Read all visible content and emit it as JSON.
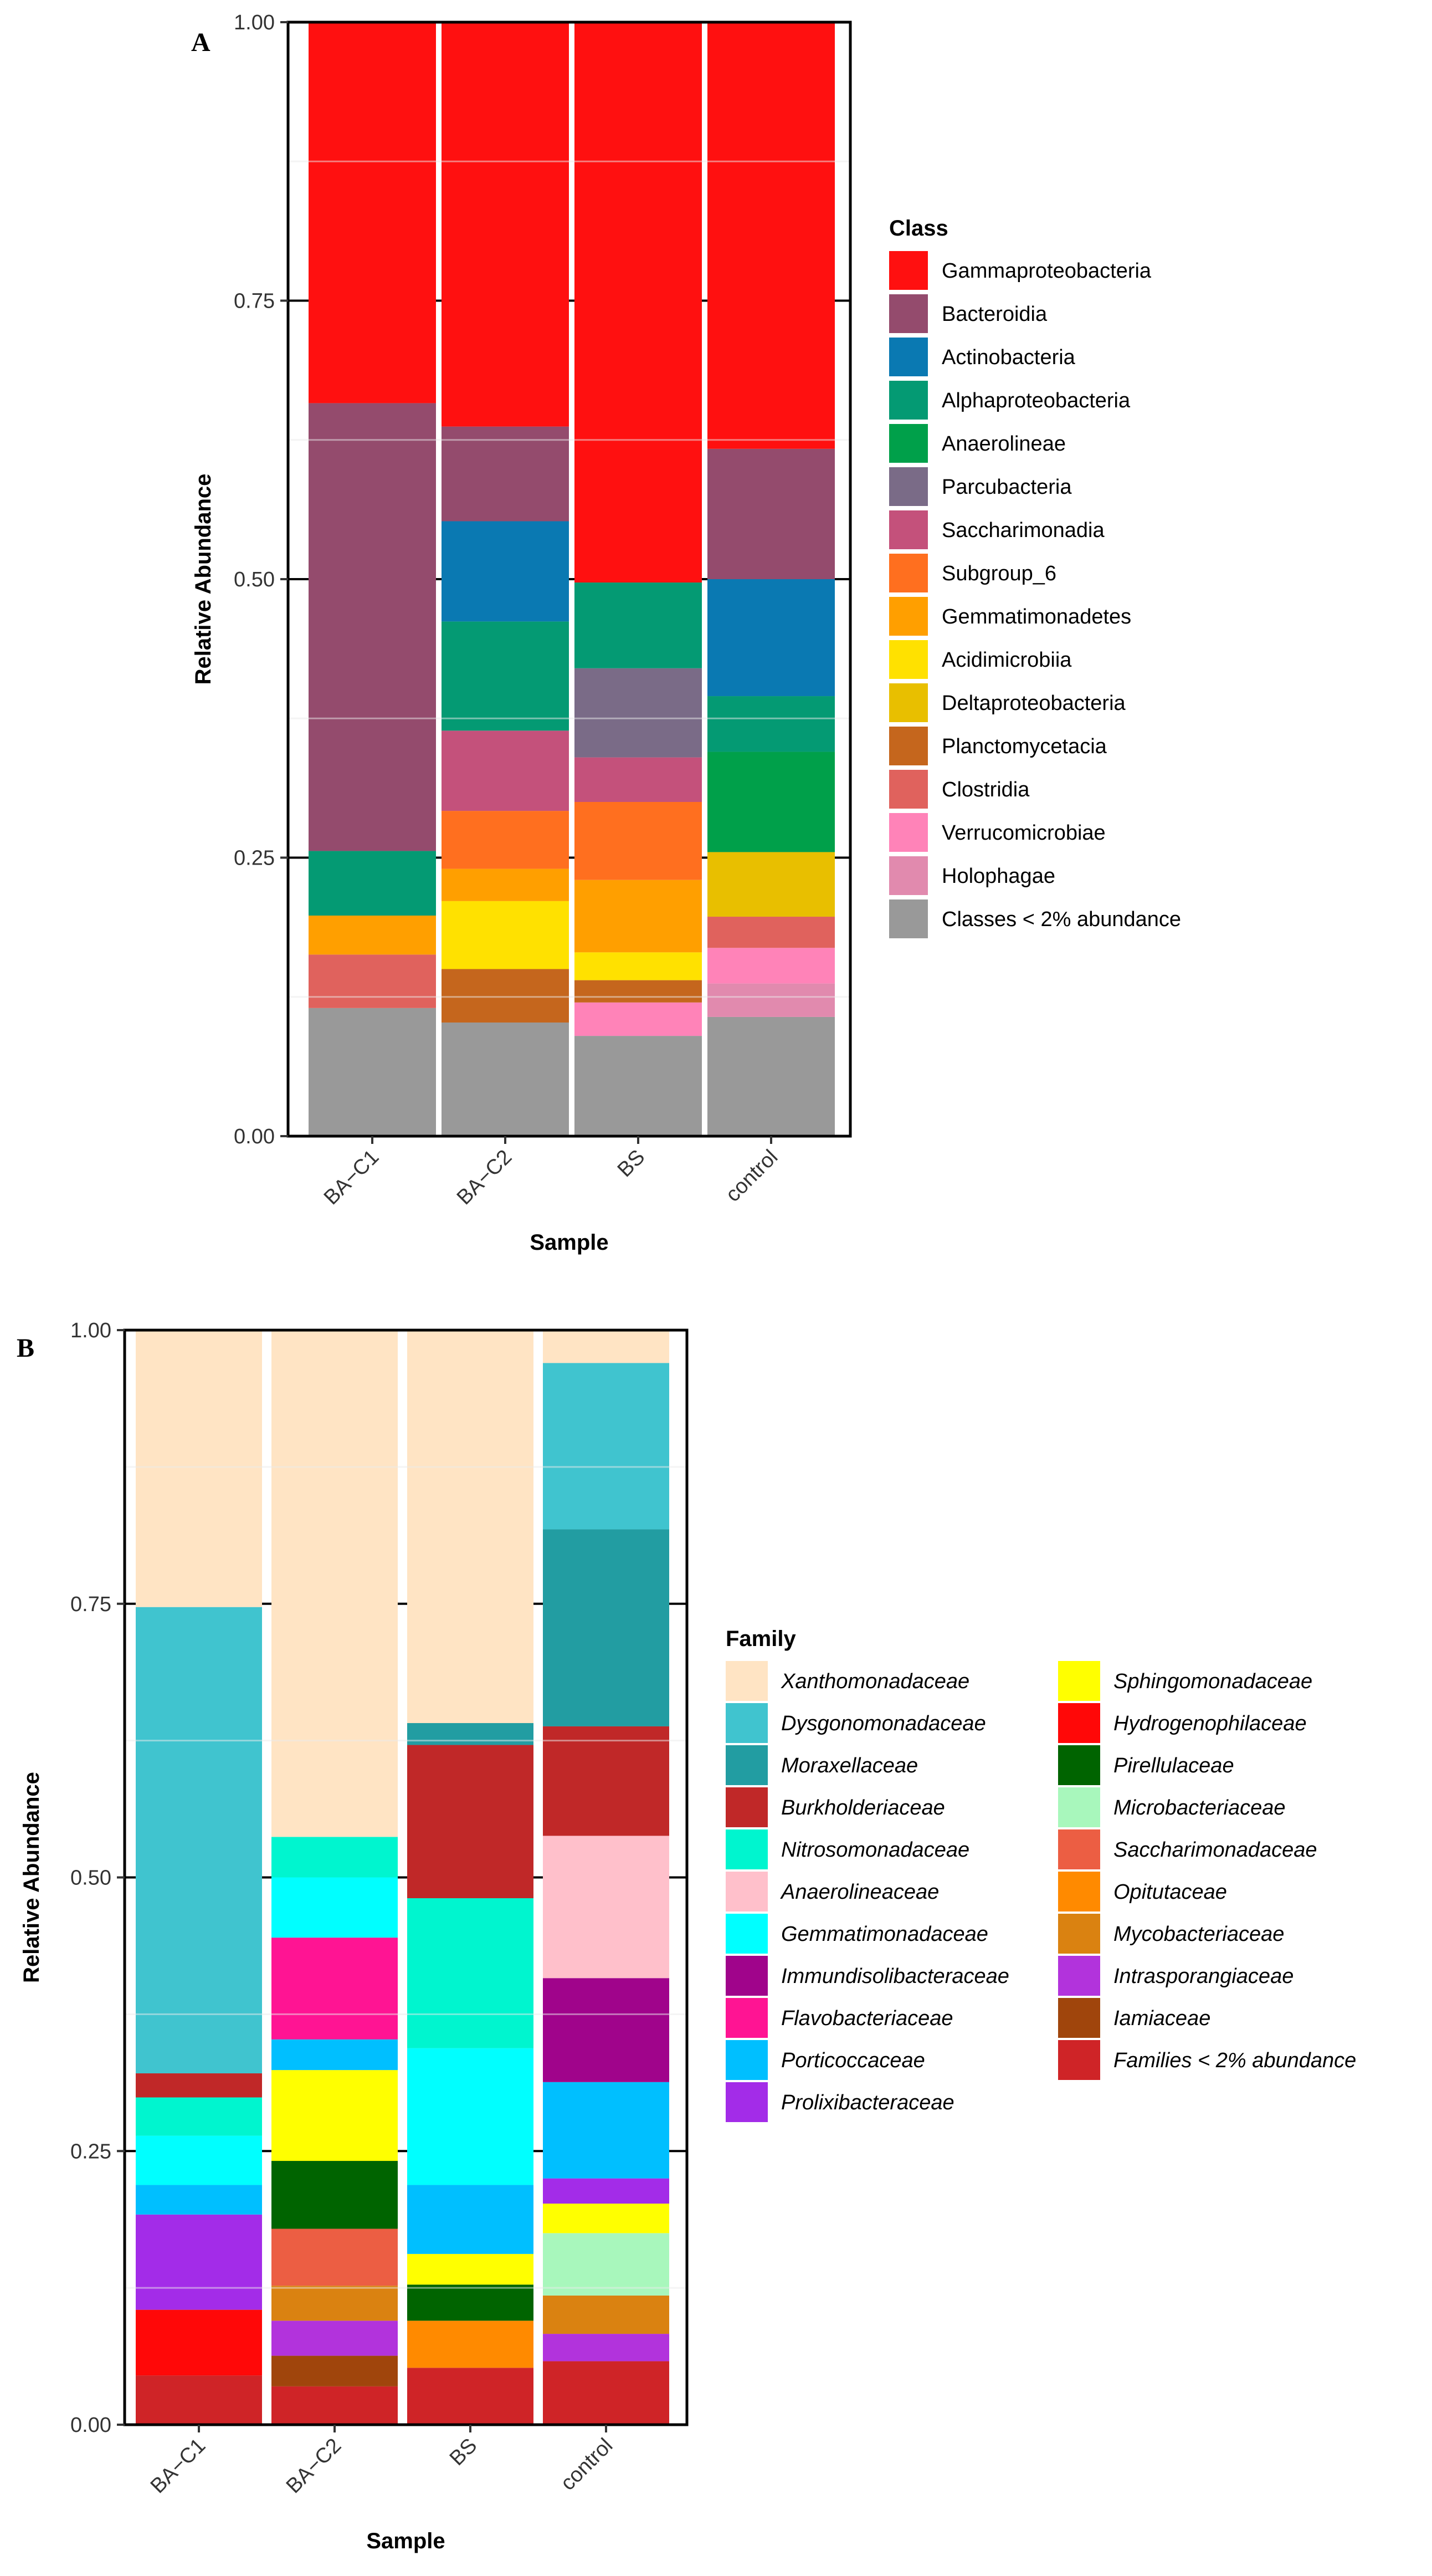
{
  "chart_data": [
    {
      "panel": "A",
      "type": "bar",
      "stacked": true,
      "xlabel": "Sample",
      "ylabel": "Relative Abundance",
      "ylim": [
        0,
        1
      ],
      "yticks": [
        "0.00",
        "0.25",
        "0.50",
        "0.75",
        "1.00"
      ],
      "categories": [
        "BA−C1",
        "BA−C2",
        "BS",
        "control"
      ],
      "legend_title": "Class",
      "legend_position": "right",
      "series": [
        {
          "name": "Classes < 2% abundance",
          "color": "#999999",
          "values": [
            0.115,
            0.102,
            0.09,
            0.107
          ]
        },
        {
          "name": "Holophagae",
          "color": "#E18AAE",
          "values": [
            0,
            0,
            0,
            0.03
          ]
        },
        {
          "name": "Verrucomicrobiae",
          "color": "#FF83B8",
          "values": [
            0,
            0,
            0.03,
            0.032
          ]
        },
        {
          "name": "Clostridia",
          "color": "#E0625D",
          "values": [
            0.048,
            0,
            0,
            0.028
          ]
        },
        {
          "name": "Planctomycetacia",
          "color": "#C5661D",
          "values": [
            0,
            0.048,
            0.02,
            0
          ]
        },
        {
          "name": "Deltaproteobacteria",
          "color": "#E8BF00",
          "values": [
            0,
            0,
            0,
            0.058
          ]
        },
        {
          "name": "Acidimicrobiia",
          "color": "#FFE100",
          "values": [
            0,
            0.061,
            0.025,
            0
          ]
        },
        {
          "name": "Gemmatimonadetes",
          "color": "#FF9F00",
          "values": [
            0.035,
            0.029,
            0.065,
            0
          ]
        },
        {
          "name": "Subgroup_6",
          "color": "#FF6F1F",
          "values": [
            0,
            0.052,
            0.07,
            0
          ]
        },
        {
          "name": "Saccharimonadia",
          "color": "#C4517B",
          "values": [
            0,
            0.072,
            0.04,
            0
          ]
        },
        {
          "name": "Parcubacteria",
          "color": "#7A6B87",
          "values": [
            0,
            0,
            0.08,
            0
          ]
        },
        {
          "name": "Anaerolineae",
          "color": "#00A04A",
          "values": [
            0,
            0,
            0,
            0.09
          ]
        },
        {
          "name": "Alphaproteobacteria",
          "color": "#049A73",
          "values": [
            0.058,
            0.098,
            0.077,
            0.05
          ]
        },
        {
          "name": "Actinobacteria",
          "color": "#0A79B2",
          "values": [
            0,
            0.09,
            0,
            0.105
          ]
        },
        {
          "name": "Bacteroidia",
          "color": "#944B6D",
          "values": [
            0.402,
            0.085,
            0,
            0.117
          ]
        },
        {
          "name": "Gammaproteobacteria",
          "color": "#FF1010",
          "values": [
            0.342,
            0.363,
            0.503,
            0.383
          ]
        }
      ]
    },
    {
      "panel": "B",
      "type": "bar",
      "stacked": true,
      "xlabel": "Sample",
      "ylabel": "Relative Abundance",
      "ylim": [
        0,
        1
      ],
      "yticks": [
        "0.00",
        "0.25",
        "0.50",
        "0.75",
        "1.00"
      ],
      "categories": [
        "BA−C1",
        "BA−C2",
        "BS",
        "control"
      ],
      "legend_title": "Family",
      "legend_position": "right",
      "series": [
        {
          "name": "Families < 2% abundance",
          "color": "#CF2427",
          "values": [
            0.045,
            0.035,
            0.052,
            0.058
          ]
        },
        {
          "name": "Iamiaceae",
          "color": "#A0450C",
          "values": [
            0,
            0.028,
            0,
            0
          ]
        },
        {
          "name": "Intrasporangiaceae",
          "color": "#B233DC",
          "values": [
            0,
            0.032,
            0,
            0.025
          ]
        },
        {
          "name": "Mycobacteriaceae",
          "color": "#DA8211",
          "values": [
            0,
            0.032,
            0,
            0.035
          ]
        },
        {
          "name": "Opitutaceae",
          "color": "#FF8A00",
          "values": [
            0,
            0,
            0.043,
            0
          ]
        },
        {
          "name": "Saccharimonadaceae",
          "color": "#EC5E43",
          "values": [
            0,
            0.052,
            0,
            0
          ]
        },
        {
          "name": "Microbacteriaceae",
          "color": "#A8F7BC",
          "values": [
            0,
            0,
            0,
            0.057
          ]
        },
        {
          "name": "Pirellulaceae",
          "color": "#006400",
          "values": [
            0,
            0.062,
            0.033,
            0
          ]
        },
        {
          "name": "Hydrogenophilaceae",
          "color": "#FF0808",
          "values": [
            0.06,
            0,
            0,
            0
          ]
        },
        {
          "name": "Sphingomonadaceae",
          "color": "#FFFF00",
          "values": [
            0,
            0.083,
            0.028,
            0.027
          ]
        },
        {
          "name": "Prolixibacteraceae",
          "color": "#A32CE8",
          "values": [
            0.087,
            0,
            0,
            0.023
          ]
        },
        {
          "name": "Porticoccaceae",
          "color": "#00BFFF",
          "values": [
            0.027,
            0.028,
            0.063,
            0.088
          ]
        },
        {
          "name": "Flavobacteriaceae",
          "color": "#FF1493",
          "values": [
            0,
            0.093,
            0,
            0
          ]
        },
        {
          "name": "Immundisolibacteraceae",
          "color": "#A0048B",
          "values": [
            0,
            0,
            0,
            0.095
          ]
        },
        {
          "name": "Gemmatimonadaceae",
          "color": "#00FFFF",
          "values": [
            0.045,
            0.055,
            0.125,
            0
          ]
        },
        {
          "name": "Anaerolineaceae",
          "color": "#FFC0CB",
          "values": [
            0,
            0,
            0,
            0.13
          ]
        },
        {
          "name": "Nitrosomonadaceae",
          "color": "#00F5CF",
          "values": [
            0.035,
            0.037,
            0.137,
            0
          ]
        },
        {
          "name": "Burkholderiaceae",
          "color": "#C02828",
          "values": [
            0.022,
            0,
            0.14,
            0.1
          ]
        },
        {
          "name": "Moraxellaceae",
          "color": "#229DA2",
          "values": [
            0,
            0,
            0.02,
            0.18
          ]
        },
        {
          "name": "Dysgonomonadaceae",
          "color": "#40C4CF",
          "values": [
            0.426,
            0,
            0,
            0.152
          ]
        },
        {
          "name": "Xanthomonadaceae",
          "color": "#FFE4C4",
          "values": [
            0.253,
            0.463,
            0.359,
            0.03
          ]
        }
      ],
      "legend_order": [
        "Xanthomonadaceae",
        "Dysgonomonadaceae",
        "Moraxellaceae",
        "Burkholderiaceae",
        "Nitrosomonadaceae",
        "Anaerolineaceae",
        "Gemmatimonadaceae",
        "Immundisolibacteraceae",
        "Flavobacteriaceae",
        "Porticoccaceae",
        "Prolixibacteraceae",
        "Sphingomonadaceae",
        "Hydrogenophilaceae",
        "Pirellulaceae",
        "Microbacteriaceae",
        "Saccharimonadaceae",
        "Opitutaceae",
        "Mycobacteriaceae",
        "Intrasporangiaceae",
        "Iamiaceae",
        "Families < 2% abundance"
      ]
    }
  ]
}
